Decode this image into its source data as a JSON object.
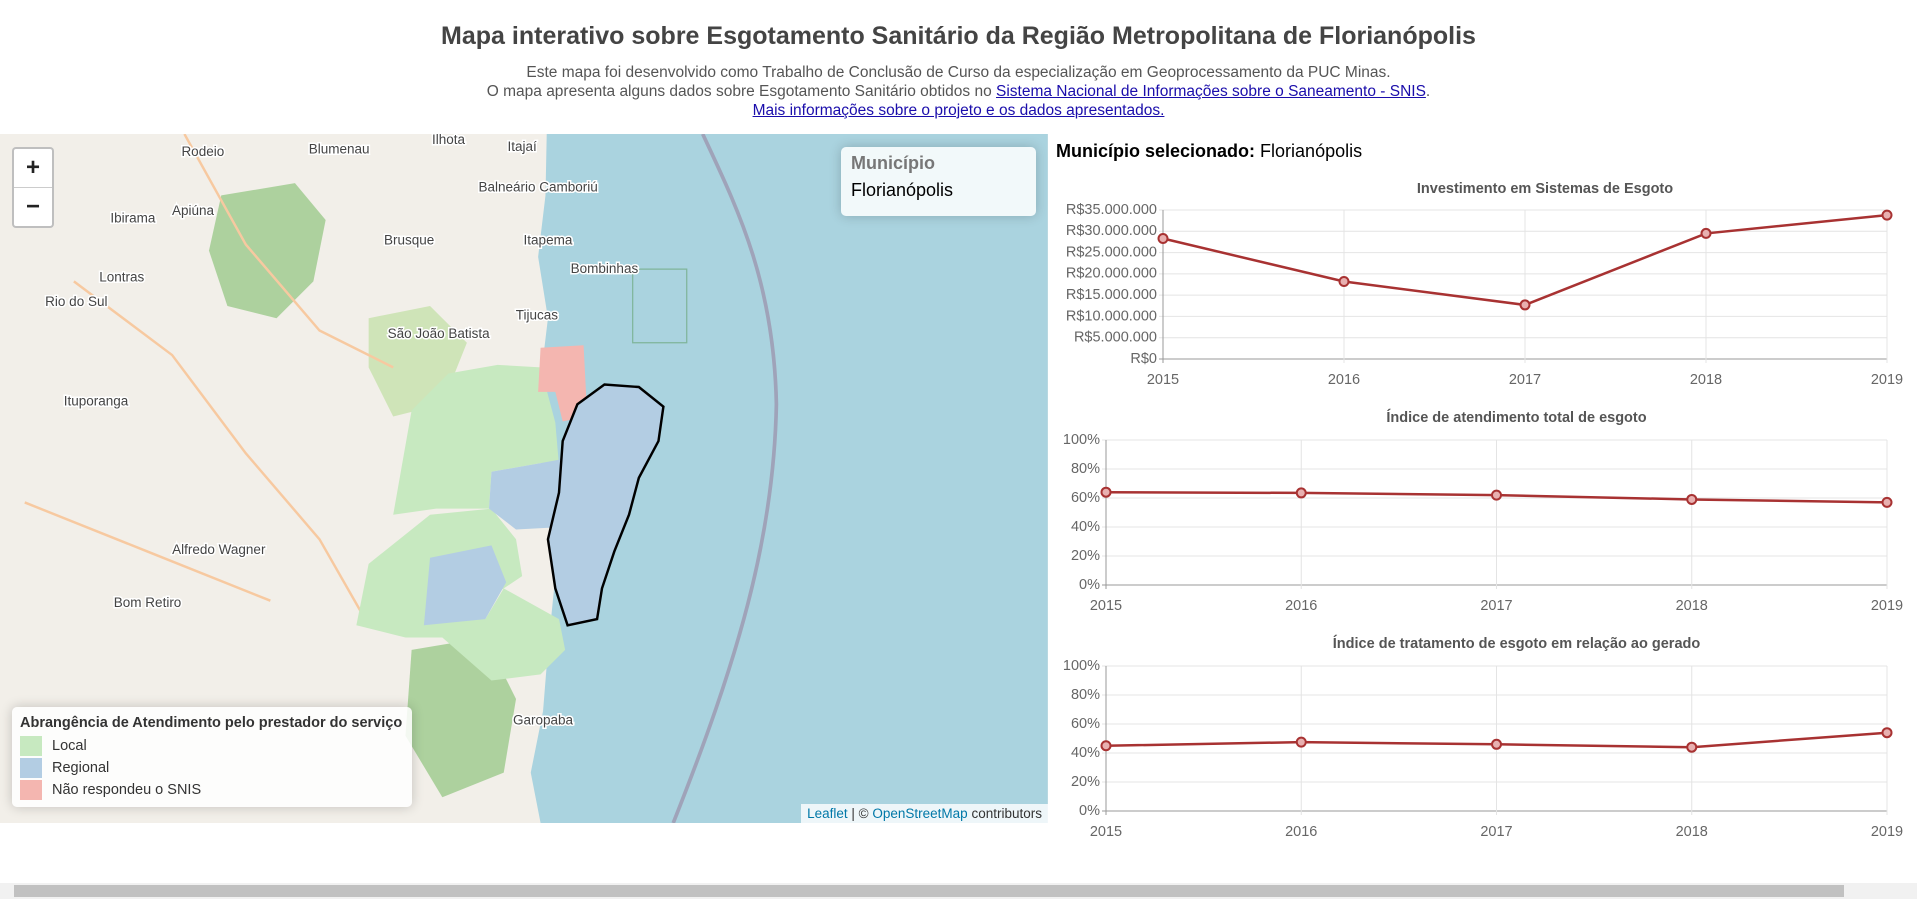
{
  "header": {
    "title": "Mapa interativo sobre Esgotamento Sanitário da Região Metropolitana de Florianópolis",
    "description": [
      "Este mapa foi desenvolvido como Trabalho de Conclusão de Curso da especialização em Geoprocessamento da PUC Minas.",
      "O mapa apresenta alguns dados sobre Esgotamento Sanitário obtidos no "
    ],
    "snis_link": "Sistema Nacional de Informações sobre o Saneamento - SNIS",
    "snis_suffix": ".",
    "info_link": "Mais informações sobre o projeto e os dados apresentados."
  },
  "map": {
    "zoom_in": "+",
    "zoom_out": "−",
    "info": {
      "title": "Município",
      "value": "Florianópolis"
    },
    "legend": {
      "title": "Abrangência de Atendimento pelo prestador do serviço",
      "items": [
        {
          "label": "Local",
          "color": "#c7e9c0"
        },
        {
          "label": "Regional",
          "color": "#b3cde3"
        },
        {
          "label": "Não respondeu o SNIS",
          "color": "#f4b6b0"
        }
      ]
    },
    "places": [
      "Ilhota",
      "Itajaí",
      "Rodeio",
      "Blumenau",
      "Balneário Camboriú",
      "Apiúna",
      "Ibirama",
      "Brusque",
      "Itapema",
      "Bombinhas",
      "Lontras",
      "Rio do Sul",
      "Tijucas",
      "São João Batista",
      "Ituporanga",
      "Alfredo Wagner",
      "Bom Retiro",
      "Garopaba"
    ],
    "attribution": {
      "leaflet": "Leaflet",
      "sep": " | © ",
      "osm": "OpenStreetMap",
      "tail": " contributors"
    }
  },
  "panel": {
    "label": "Município selecionado:",
    "value": "Florianópolis"
  },
  "chart_data": [
    {
      "type": "line",
      "title": "Investimento em Sistemas de Esgoto",
      "color": "#a83232",
      "categories": [
        "2015",
        "2016",
        "2017",
        "2018",
        "2019"
      ],
      "values": [
        28300000,
        18200000,
        12700000,
        29500000,
        33800000
      ],
      "ylim": [
        0,
        35000000
      ],
      "grid": true,
      "yticks": [
        {
          "value": 0,
          "label": "R$0"
        },
        {
          "value": 5000000,
          "label": "R$5.000.000"
        },
        {
          "value": 10000000,
          "label": "R$10.000.000"
        },
        {
          "value": 15000000,
          "label": "R$15.000.000"
        },
        {
          "value": 20000000,
          "label": "R$20.000.000"
        },
        {
          "value": 25000000,
          "label": "R$25.000.000"
        },
        {
          "value": 30000000,
          "label": "R$30.000.000"
        },
        {
          "value": 35000000,
          "label": "R$35.000.000"
        }
      ]
    },
    {
      "type": "line",
      "title": "Índice de atendimento total de esgoto",
      "color": "#a83232",
      "categories": [
        "2015",
        "2016",
        "2017",
        "2018",
        "2019"
      ],
      "values": [
        64,
        63.5,
        62,
        59,
        57
      ],
      "ylim": [
        0,
        100
      ],
      "grid": true,
      "yticks": [
        {
          "value": 0,
          "label": "0%"
        },
        {
          "value": 20,
          "label": "20%"
        },
        {
          "value": 40,
          "label": "40%"
        },
        {
          "value": 60,
          "label": "60%"
        },
        {
          "value": 80,
          "label": "80%"
        },
        {
          "value": 100,
          "label": "100%"
        }
      ]
    },
    {
      "type": "line",
      "title": "Índice de tratamento de esgoto em relação ao gerado",
      "color": "#a83232",
      "categories": [
        "2015",
        "2016",
        "2017",
        "2018",
        "2019"
      ],
      "values": [
        45,
        47.5,
        46,
        44,
        54
      ],
      "ylim": [
        0,
        100
      ],
      "grid": true,
      "yticks": [
        {
          "value": 0,
          "label": "0%"
        },
        {
          "value": 20,
          "label": "20%"
        },
        {
          "value": 40,
          "label": "40%"
        },
        {
          "value": 60,
          "label": "60%"
        },
        {
          "value": 80,
          "label": "80%"
        },
        {
          "value": 100,
          "label": "100%"
        }
      ]
    }
  ]
}
